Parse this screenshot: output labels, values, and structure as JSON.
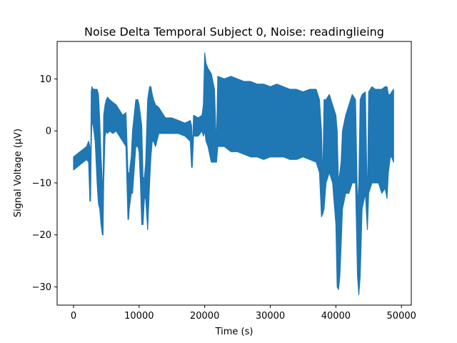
{
  "chart_data": {
    "type": "line",
    "title": "Noise Delta Temporal Subject 0, Noise: readinglieing",
    "xlabel": "Time (s)",
    "ylabel": "Signal Voltage (μV)",
    "xlim": [
      -2500,
      51500
    ],
    "ylim": [
      -33.5,
      17.2
    ],
    "x_ticks": [
      0,
      10000,
      20000,
      30000,
      40000,
      50000
    ],
    "x_tick_labels": [
      "0",
      "10000",
      "20000",
      "30000",
      "40000",
      "50000"
    ],
    "y_ticks": [
      -30,
      -20,
      -10,
      0,
      10
    ],
    "y_tick_labels": [
      "−30",
      "−20",
      "−10",
      "0",
      "10"
    ],
    "grid": false,
    "series": [
      {
        "color": "#1f77b4",
        "x": [
          0,
          500,
          1000,
          1500,
          2000,
          2300,
          2500,
          2600,
          2700,
          2800,
          3000,
          3300,
          3600,
          3800,
          4000,
          4200,
          4400,
          4500,
          4600,
          4800,
          5000,
          5200,
          5500,
          6000,
          6500,
          7000,
          7500,
          8000,
          8300,
          8400,
          8500,
          8600,
          8800,
          9000,
          9500,
          9800,
          10000,
          10200,
          10400,
          10600,
          10800,
          11000,
          11300,
          11600,
          11800,
          12000,
          12200,
          12500,
          13000,
          14000,
          15000,
          16000,
          17000,
          17800,
          18000,
          18100,
          18300,
          19000,
          19600,
          19800,
          20000,
          20200,
          20500,
          21000,
          21500,
          21700,
          21800,
          22000,
          23000,
          24000,
          25000,
          26000,
          27000,
          28000,
          29000,
          30000,
          31000,
          32000,
          33000,
          34000,
          35000,
          36000,
          37000,
          37500,
          37800,
          38000,
          38200,
          38500,
          39000,
          39500,
          40000,
          40200,
          40400,
          40600,
          40800,
          41000,
          41500,
          42000,
          42500,
          43000,
          43300,
          43500,
          43700,
          44000,
          44500,
          44800,
          45000,
          45500,
          46000,
          46500,
          47000,
          47500,
          47800,
          48000,
          48300,
          48500,
          48800
        ],
        "upper": [
          -5,
          -4.5,
          -4,
          -3.5,
          -3,
          -2,
          -3,
          -11,
          7.5,
          8.5,
          8,
          8,
          8,
          7,
          2,
          -5,
          -10,
          -13,
          3,
          5,
          6,
          6.5,
          6,
          5.5,
          5,
          4,
          3,
          3.5,
          -8,
          -8,
          -9,
          -7,
          -5,
          0,
          6,
          6,
          5,
          3,
          1,
          -9,
          -9,
          -6,
          6,
          8.5,
          8.5,
          7,
          6,
          5,
          4.5,
          2.5,
          2.5,
          2,
          1.5,
          2,
          1,
          -4,
          3,
          2.5,
          3,
          5,
          15,
          13,
          12,
          11,
          8,
          0,
          -2,
          10.5,
          10,
          10.5,
          10,
          9.5,
          9.5,
          9,
          9,
          8.5,
          9,
          8.5,
          8,
          8,
          7.5,
          8,
          8,
          6,
          0,
          -10,
          6,
          6,
          7,
          5,
          3,
          0,
          -10,
          -8,
          -6,
          0,
          3,
          5,
          7,
          6,
          -15,
          -10,
          6,
          7,
          7.5,
          -15,
          7.5,
          8.5,
          8,
          8,
          8,
          8.5,
          8.5,
          7,
          7,
          7.5,
          8
        ],
        "lower": [
          -7.5,
          -7,
          -6.5,
          -6,
          -5.5,
          -6,
          -13.5,
          -13.5,
          -3,
          2,
          1,
          -2,
          -10,
          -14,
          -15,
          -18,
          -20,
          -20,
          -10,
          -1,
          0,
          -0.5,
          0,
          -0.5,
          0,
          -1,
          -2,
          -3,
          -17,
          -17,
          -15,
          -14,
          -12,
          -12,
          -3,
          -3,
          -4,
          -10,
          -18,
          -18,
          -13,
          -13,
          -19,
          -10,
          -5,
          -2,
          -2,
          -3,
          -0.5,
          -0.5,
          -0.5,
          -0.5,
          -1,
          -2,
          -7,
          -7,
          -1,
          -1,
          0,
          -1,
          0,
          -2,
          -3,
          -6,
          -6,
          -6,
          -6,
          -3,
          -3,
          -4,
          -4,
          -4.5,
          -5,
          -5,
          -5.5,
          -5,
          -5,
          -5,
          -5.5,
          -5.5,
          -5,
          -5.5,
          -6,
          -8,
          -16.5,
          -16,
          -15,
          -10,
          -8,
          -10,
          -18,
          -30,
          -30.5,
          -28,
          -22,
          -15,
          -12,
          -12,
          -10,
          -10,
          -28,
          -31.5,
          -28,
          -15,
          -12,
          -19,
          -12,
          -10,
          -10,
          -10,
          -12,
          -11,
          -13,
          -8,
          -5,
          -5,
          -6
        ]
      }
    ]
  }
}
